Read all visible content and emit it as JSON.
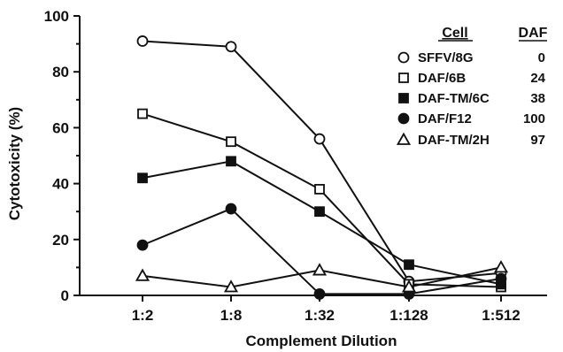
{
  "chart_data": {
    "type": "line",
    "title": "",
    "xlabel": "Complement Dilution",
    "ylabel": "Cytotoxicity (%)",
    "categories": [
      "1:2",
      "1:8",
      "1:32",
      "1:128",
      "1:512"
    ],
    "ylim": [
      0,
      100
    ],
    "yticks": [
      "0",
      "20",
      "40",
      "60",
      "80",
      "100"
    ],
    "grid": false,
    "legend": {
      "placement": "top-right",
      "col_cell": "Cell",
      "col_daf": "DAF"
    },
    "series": [
      {
        "name": "SFFV/8G",
        "daf": "0",
        "marker": "circle-open",
        "values": [
          91,
          89,
          56,
          5,
          8
        ]
      },
      {
        "name": "DAF/6B",
        "daf": "24",
        "marker": "square-open",
        "values": [
          65,
          55,
          38,
          4,
          3
        ]
      },
      {
        "name": "DAF-TM/6C",
        "daf": "38",
        "marker": "square-filled",
        "values": [
          42,
          48,
          30,
          11,
          4
        ]
      },
      {
        "name": "DAF/F12",
        "daf": "100",
        "marker": "circle-filled",
        "values": [
          18,
          31,
          0.5,
          0.5,
          6
        ]
      },
      {
        "name": "DAF-TM/2H",
        "daf": "97",
        "marker": "triangle-open",
        "values": [
          7,
          3,
          9,
          3,
          10
        ]
      }
    ]
  }
}
